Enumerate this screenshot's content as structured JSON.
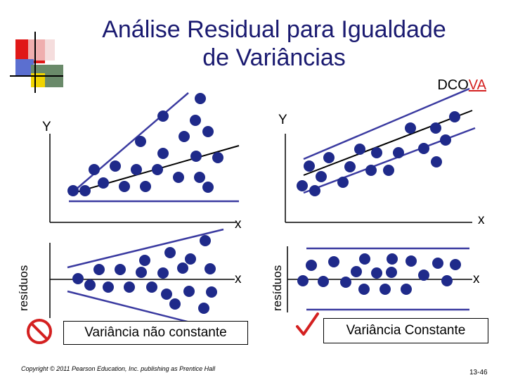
{
  "title_line1": "Análise Residual para Igualdade",
  "title_line2": "de Variâncias",
  "brand_prefix": "DCO",
  "brand_suffix": "VA",
  "axis": {
    "y_left": "Y",
    "y_right": "Y",
    "x_top_left": "x",
    "x_top_right": "x",
    "x_bottom_left": "x",
    "x_bottom_right": "x",
    "residuals_left": "resíduos",
    "residuals_right": "resíduos"
  },
  "labels": {
    "non_constant": "Variância não constante",
    "constant": "Variância Constante"
  },
  "footer": "Copyright © 2011 Pearson Education, Inc. publishing as Prentice Hall",
  "page_number": "13-46",
  "colors": {
    "dots": "#1f2a8a",
    "lines": "#3a3aa0",
    "title": "#1a1a70",
    "check": "#d42020",
    "prohibit": "#d42020"
  }
}
